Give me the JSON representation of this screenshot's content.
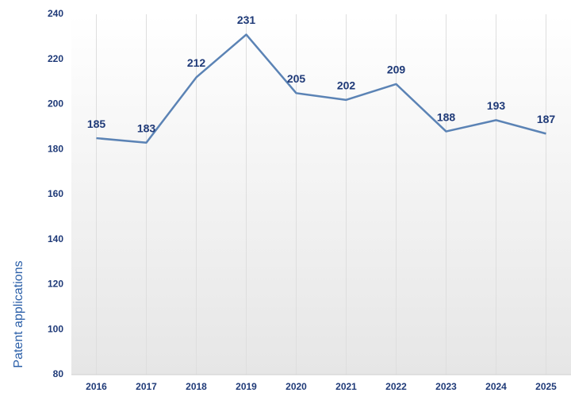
{
  "chart_data": {
    "type": "line",
    "y_label": "Patent applications",
    "x": [
      2016,
      2017,
      2018,
      2019,
      2020,
      2021,
      2022,
      2023,
      2024,
      2025
    ],
    "series": [
      {
        "color": "#5b83b5",
        "values": [
          185,
          183,
          212,
          231,
          205,
          202,
          209,
          188,
          193,
          187
        ]
      }
    ],
    "xlim": [
      2015.5,
      2025.5
    ],
    "xticks": [
      2016,
      2017,
      2018,
      2019,
      2020,
      2021,
      2022,
      2023,
      2024,
      2025
    ],
    "ylim": [
      80,
      240
    ],
    "yticks": [
      80,
      100,
      120,
      140,
      160,
      180,
      200,
      220,
      240
    ],
    "grid": true,
    "data_labels": true
  }
}
